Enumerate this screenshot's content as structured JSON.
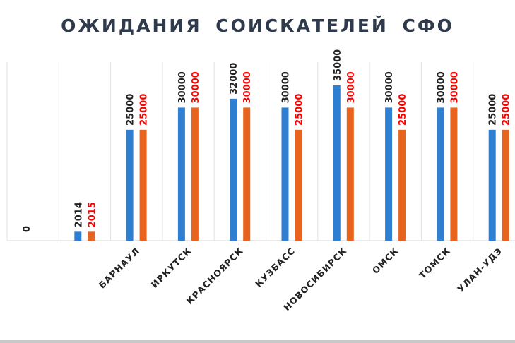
{
  "chart_data": {
    "type": "bar",
    "title": "ОЖИДАНИЯ  СОИСКАТЕЛЕЙ  СФО",
    "xlabel": "",
    "ylabel": "",
    "ylim": [
      0,
      35000
    ],
    "grid": "vertical category separators",
    "categories": [
      "",
      "",
      "БАРНАУЛ",
      "ИРКУТСК",
      "КРАСНОЯРСК",
      "КУЗБАСС",
      "НОВОСИБИРСК",
      "ОМСК",
      "ТОМСК",
      "УЛАН-УДЭ"
    ],
    "series": [
      {
        "name": "2014",
        "color": "#2e7fd1",
        "label_color": "#222222",
        "values": [
          0,
          2014,
          25000,
          30000,
          32000,
          30000,
          35000,
          30000,
          30000,
          25000
        ]
      },
      {
        "name": "2015",
        "color": "#e8641e",
        "label_color": "#ff0000",
        "values": [
          null,
          2015,
          25000,
          30000,
          30000,
          25000,
          30000,
          25000,
          30000,
          25000
        ]
      }
    ]
  }
}
